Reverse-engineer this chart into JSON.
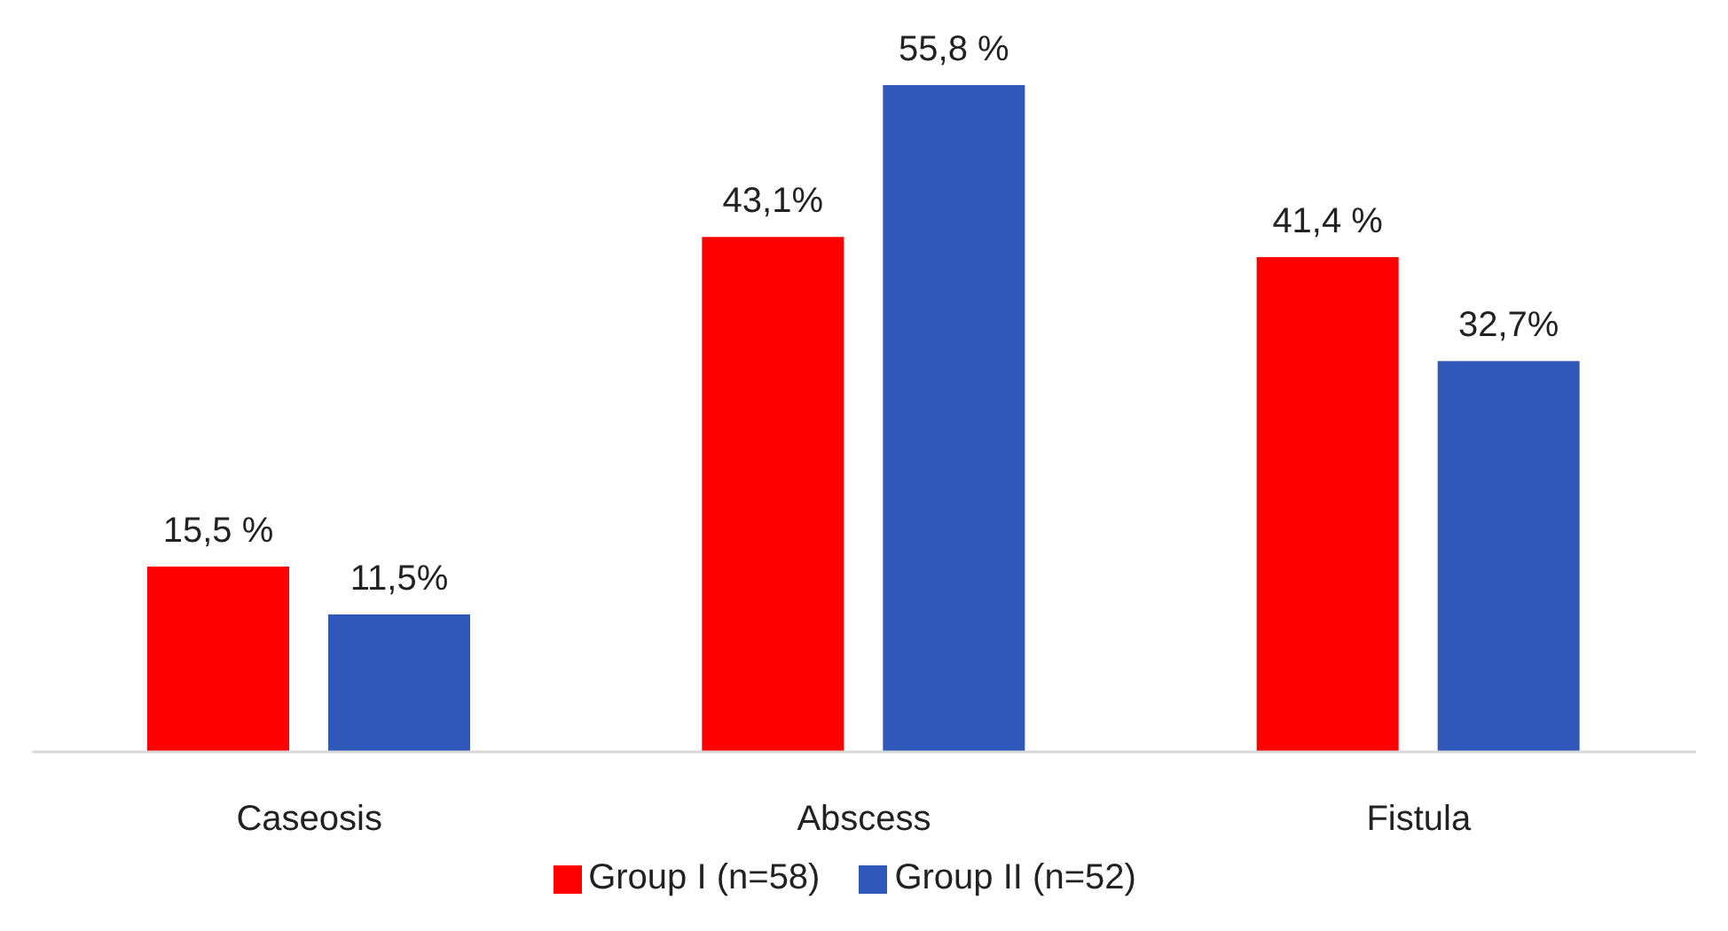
{
  "chart_data": {
    "type": "bar",
    "categories": [
      "Caseosis",
      "Abscess",
      "Fistula"
    ],
    "series": [
      {
        "name": "Group I (n=58)",
        "color": "#ff0000",
        "values": [
          15.5,
          43.1,
          41.4
        ],
        "value_labels": [
          "15,5 %",
          "43,1%",
          "41,4 %"
        ]
      },
      {
        "name": "Group II (n=52)",
        "color": "#3058b8",
        "values": [
          11.5,
          55.8,
          32.7
        ],
        "value_labels": [
          "11,5%",
          "55,8 %",
          "32,7%"
        ]
      }
    ],
    "legend": "bottom",
    "grid": false
  }
}
